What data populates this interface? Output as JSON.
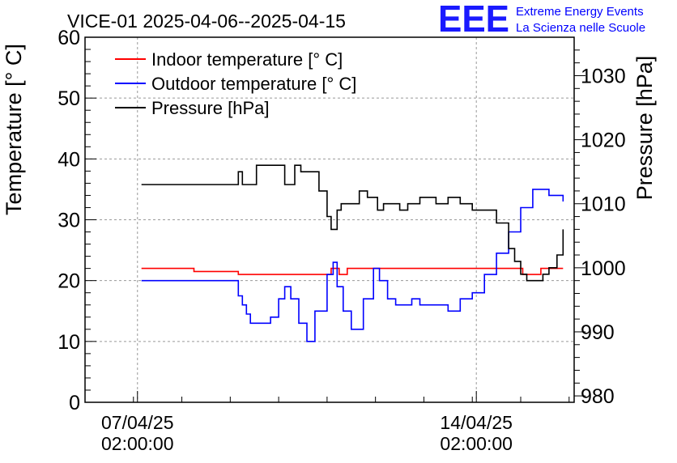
{
  "header": {
    "title": "VICE-01 2025-04-06--2025-04-15",
    "logo_text": "EEE",
    "logo_line1": "Extreme Energy Events",
    "logo_line2": "La Scienza nelle Scuole"
  },
  "chart_data": {
    "type": "line",
    "title": "VICE-01 2025-04-06--2025-04-15",
    "ylabel": "Temperature [° C]",
    "y2label": "Pressure [hPa]",
    "ylim": [
      0,
      60
    ],
    "y2lim": [
      979,
      1036
    ],
    "xlim": [
      "2025-04-06 00:00",
      "2025-04-16 02:30"
    ],
    "grid": true,
    "legend_position": "top-left",
    "xticks": [
      {
        "time": "2025-04-07 02:00",
        "line1": "07/04/25",
        "line2": "02:00:00"
      },
      {
        "time": "2025-04-14 02:00",
        "line1": "14/04/25",
        "line2": "02:00:00"
      }
    ],
    "yticks": [
      "0",
      "10",
      "20",
      "30",
      "40",
      "50",
      "60"
    ],
    "y2ticks": [
      "980",
      "990",
      "1000",
      "1010",
      "1020",
      "1030"
    ],
    "colors": {
      "indoor": "#ff0000",
      "outdoor": "#0000ff",
      "pressure": "#000000"
    },
    "series": [
      {
        "name": "Indoor temperature [° C]",
        "axis": "left",
        "color": "#ff0000",
        "points": [
          [
            "2025-04-07 04:00",
            22.0
          ],
          [
            "2025-04-08 06:00",
            21.5
          ],
          [
            "2025-04-09 04:00",
            21.0
          ],
          [
            "2025-04-11 00:00",
            21.0
          ],
          [
            "2025-04-11 02:00",
            22.0
          ],
          [
            "2025-04-11 04:00",
            22.0
          ],
          [
            "2025-04-11 06:00",
            21.0
          ],
          [
            "2025-04-11 09:00",
            21.0
          ],
          [
            "2025-04-11 10:00",
            22.0
          ],
          [
            "2025-04-15 00:00",
            22.0
          ],
          [
            "2025-04-15 01:00",
            21.0
          ],
          [
            "2025-04-15 09:00",
            21.0
          ],
          [
            "2025-04-15 10:00",
            22.0
          ],
          [
            "2025-04-15 21:00",
            22.0
          ]
        ]
      },
      {
        "name": "Outdoor temperature [° C]",
        "axis": "left",
        "color": "#0000ff",
        "points": [
          [
            "2025-04-07 04:00",
            20.0
          ],
          [
            "2025-04-09 04:00",
            17.5
          ],
          [
            "2025-04-09 06:00",
            16.0
          ],
          [
            "2025-04-09 08:00",
            14.5
          ],
          [
            "2025-04-09 10:00",
            13.0
          ],
          [
            "2025-04-09 20:00",
            14.0
          ],
          [
            "2025-04-10 00:00",
            17.0
          ],
          [
            "2025-04-10 03:00",
            19.0
          ],
          [
            "2025-04-10 06:00",
            17.0
          ],
          [
            "2025-04-10 10:00",
            13.0
          ],
          [
            "2025-04-10 14:00",
            10.0
          ],
          [
            "2025-04-10 18:00",
            15.0
          ],
          [
            "2025-04-11 00:00",
            21.0
          ],
          [
            "2025-04-11 03:00",
            23.0
          ],
          [
            "2025-04-11 05:00",
            19.0
          ],
          [
            "2025-04-11 08:00",
            15.0
          ],
          [
            "2025-04-11 12:00",
            12.0
          ],
          [
            "2025-04-11 18:00",
            17.0
          ],
          [
            "2025-04-11 23:00",
            22.0
          ],
          [
            "2025-04-12 02:00",
            20.0
          ],
          [
            "2025-04-12 06:00",
            17.0
          ],
          [
            "2025-04-12 10:00",
            16.0
          ],
          [
            "2025-04-12 14:00",
            16.0
          ],
          [
            "2025-04-12 18:00",
            17.0
          ],
          [
            "2025-04-12 22:00",
            16.0
          ],
          [
            "2025-04-13 06:00",
            16.0
          ],
          [
            "2025-04-13 12:00",
            15.0
          ],
          [
            "2025-04-13 18:00",
            17.0
          ],
          [
            "2025-04-14 00:00",
            18.0
          ],
          [
            "2025-04-14 06:00",
            21.0
          ],
          [
            "2025-04-14 12:00",
            24.5
          ],
          [
            "2025-04-14 18:00",
            28.0
          ],
          [
            "2025-04-15 00:00",
            32.0
          ],
          [
            "2025-04-15 06:00",
            35.0
          ],
          [
            "2025-04-15 14:00",
            34.0
          ],
          [
            "2025-04-15 21:00",
            33.0
          ]
        ]
      },
      {
        "name": "Pressure [hPa]",
        "axis": "right",
        "color": "#000000",
        "points": [
          [
            "2025-04-07 04:00",
            1013.0
          ],
          [
            "2025-04-09 04:00",
            1015.0
          ],
          [
            "2025-04-09 06:00",
            1013.0
          ],
          [
            "2025-04-09 08:00",
            1013.0
          ],
          [
            "2025-04-09 13:00",
            1016.0
          ],
          [
            "2025-04-10 01:00",
            1016.0
          ],
          [
            "2025-04-10 03:00",
            1013.0
          ],
          [
            "2025-04-10 05:00",
            1013.0
          ],
          [
            "2025-04-10 08:00",
            1016.0
          ],
          [
            "2025-04-10 11:00",
            1015.0
          ],
          [
            "2025-04-10 15:00",
            1015.0
          ],
          [
            "2025-04-10 20:00",
            1012.0
          ],
          [
            "2025-04-11 00:00",
            1008.0
          ],
          [
            "2025-04-11 02:00",
            1006.0
          ],
          [
            "2025-04-11 05:00",
            1009.0
          ],
          [
            "2025-04-11 07:00",
            1010.0
          ],
          [
            "2025-04-11 11:00",
            1010.0
          ],
          [
            "2025-04-11 16:00",
            1012.0
          ],
          [
            "2025-04-11 20:00",
            1011.0
          ],
          [
            "2025-04-12 01:00",
            1009.0
          ],
          [
            "2025-04-12 04:00",
            1010.0
          ],
          [
            "2025-04-12 08:00",
            1010.0
          ],
          [
            "2025-04-12 12:00",
            1009.0
          ],
          [
            "2025-04-12 16:00",
            1010.0
          ],
          [
            "2025-04-12 22:00",
            1011.0
          ],
          [
            "2025-04-13 06:00",
            1010.0
          ],
          [
            "2025-04-13 12:00",
            1011.0
          ],
          [
            "2025-04-13 18:00",
            1010.0
          ],
          [
            "2025-04-14 00:00",
            1009.0
          ],
          [
            "2025-04-14 06:00",
            1009.0
          ],
          [
            "2025-04-14 12:00",
            1007.0
          ],
          [
            "2025-04-14 18:00",
            1003.0
          ],
          [
            "2025-04-14 21:00",
            1001.0
          ],
          [
            "2025-04-15 00:00",
            999.0
          ],
          [
            "2025-04-15 03:00",
            998.0
          ],
          [
            "2025-04-15 07:00",
            998.0
          ],
          [
            "2025-04-15 11:00",
            999.0
          ],
          [
            "2025-04-15 14:00",
            1000.0
          ],
          [
            "2025-04-15 18:00",
            1002.0
          ],
          [
            "2025-04-15 21:00",
            1006.0
          ]
        ]
      }
    ]
  }
}
